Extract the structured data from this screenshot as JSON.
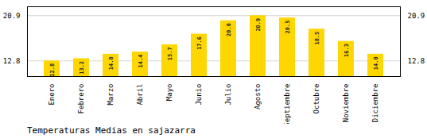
{
  "chart_data": {
    "type": "bar",
    "title": "Temperaturas Medias en sajazarra",
    "categories": [
      "Enero",
      "Febrero",
      "Marzo",
      "Abril",
      "Mayo",
      "Junio",
      "Julio",
      "Agosto",
      "Septiembre",
      "Octubre",
      "Noviembre",
      "Diciembre"
    ],
    "values": [
      12.8,
      13.2,
      14.0,
      14.4,
      15.7,
      17.6,
      20.0,
      20.9,
      20.5,
      18.5,
      16.3,
      14.0
    ],
    "value_labels": [
      "12.8",
      "13.2",
      "14.0",
      "14.4",
      "15.7",
      "17.6",
      "20.0",
      "20.9",
      "20.5",
      "18.5",
      "16.3",
      "14.0"
    ],
    "color": "#FFD700",
    "ylim": [
      10.0,
      22.5
    ],
    "yticks": [
      12.8,
      20.9
    ],
    "grid": true,
    "data_labels": true
  }
}
